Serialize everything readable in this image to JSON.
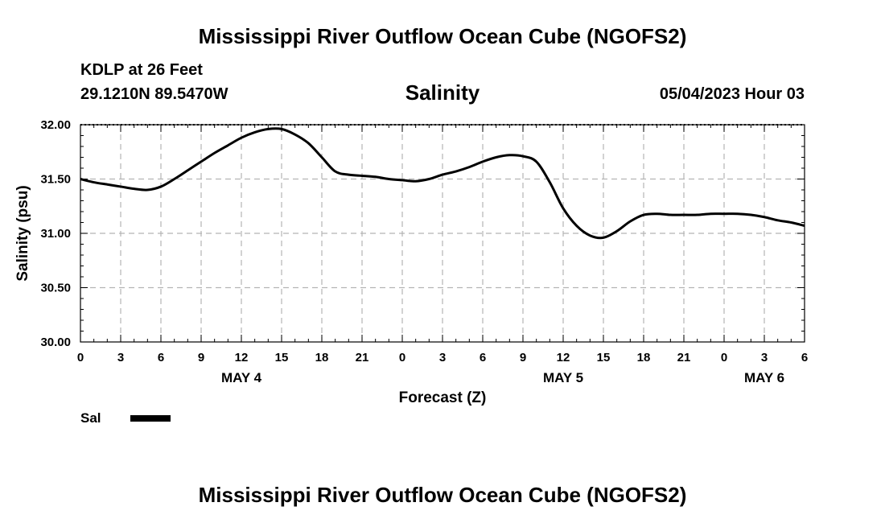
{
  "header": {
    "title": "Mississippi River Outflow Ocean Cube (NGOFS2)",
    "station": "KDLP at 26 Feet",
    "coordinates": "29.1210N  89.5470W",
    "variable": "Salinity",
    "datetime": "05/04/2023 Hour 03"
  },
  "footer": {
    "title": "Mississippi River Outflow Ocean Cube (NGOFS2)"
  },
  "chart_data": {
    "type": "line",
    "title": "Salinity",
    "xlabel": "Forecast (Z)",
    "ylabel": "Salinity (psu)",
    "ylim": [
      30.0,
      32.0
    ],
    "yticks": [
      "30.00",
      "30.50",
      "31.00",
      "31.50",
      "32.00"
    ],
    "xlim_hours": [
      0,
      54
    ],
    "xtick_labels": [
      "0",
      "3",
      "6",
      "9",
      "12",
      "15",
      "18",
      "21",
      "0",
      "3",
      "6",
      "9",
      "12",
      "15",
      "18",
      "21",
      "0",
      "3",
      "6"
    ],
    "day_labels": [
      {
        "label": "MAY 4",
        "hour": 12
      },
      {
        "label": "MAY 5",
        "hour": 36
      },
      {
        "label": "MAY 6",
        "hour": 51
      }
    ],
    "grid": true,
    "legend": {
      "position": "bottom-left",
      "entries": [
        {
          "name": "Sal",
          "color": "#000000"
        }
      ]
    },
    "series": [
      {
        "name": "Sal",
        "color": "#000000",
        "x": [
          0,
          1,
          2,
          3,
          4,
          5,
          6,
          7,
          8,
          9,
          10,
          11,
          12,
          13,
          14,
          15,
          16,
          17,
          18,
          19,
          20,
          21,
          22,
          23,
          24,
          25,
          26,
          27,
          28,
          29,
          30,
          31,
          32,
          33,
          34,
          35,
          36,
          37,
          38,
          39,
          40,
          41,
          42,
          43,
          44,
          45,
          46,
          47,
          48,
          49,
          50,
          51,
          52,
          53,
          54
        ],
        "values": [
          31.5,
          31.47,
          31.45,
          31.43,
          31.41,
          31.4,
          31.43,
          31.5,
          31.58,
          31.66,
          31.74,
          31.81,
          31.88,
          31.93,
          31.96,
          31.96,
          31.91,
          31.83,
          31.7,
          31.57,
          31.54,
          31.53,
          31.52,
          31.5,
          31.49,
          31.48,
          31.5,
          31.54,
          31.57,
          31.61,
          31.66,
          31.7,
          31.72,
          31.71,
          31.66,
          31.47,
          31.23,
          31.07,
          30.98,
          30.96,
          31.02,
          31.11,
          31.17,
          31.18,
          31.17,
          31.17,
          31.17,
          31.18,
          31.18,
          31.18,
          31.17,
          31.15,
          31.12,
          31.1,
          31.07
        ]
      }
    ]
  }
}
